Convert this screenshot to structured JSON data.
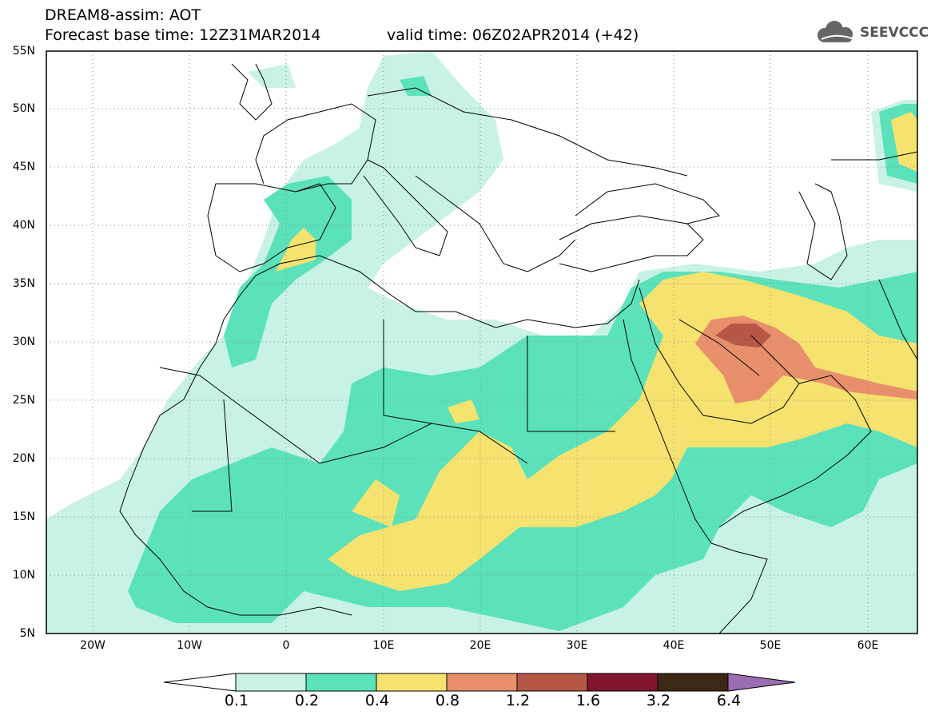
{
  "header": {
    "line1": "DREAM8-assim: AOT",
    "line2": "Forecast base time: 12Z31MAR2014",
    "line3": "valid time: 06Z02APR2014 (+42)",
    "logo_text": "SEEVCCC"
  },
  "axes": {
    "y_labels": [
      "55N",
      "50N",
      "45N",
      "40N",
      "35N",
      "30N",
      "25N",
      "20N",
      "15N",
      "10N",
      "5N"
    ],
    "x_labels": [
      "20W",
      "10W",
      "0",
      "10E",
      "20E",
      "30E",
      "40E",
      "50E",
      "60E"
    ],
    "lon_range": [
      -25,
      65
    ],
    "lat_range": [
      5,
      55
    ],
    "grid": "dotted"
  },
  "colors": {
    "c01": "#c9f2e6",
    "c02": "#5ce2bb",
    "c04": "#f6e26e",
    "c08": "#e88f6b",
    "c12": "#b65746",
    "c16": "#82142b",
    "c32": "#3c2815",
    "c64": "#9a6eb0"
  },
  "colorbar": {
    "ticks": [
      "0.1",
      "0.2",
      "0.4",
      "0.8",
      "1.2",
      "1.6",
      "3.2",
      "6.4"
    ]
  }
}
